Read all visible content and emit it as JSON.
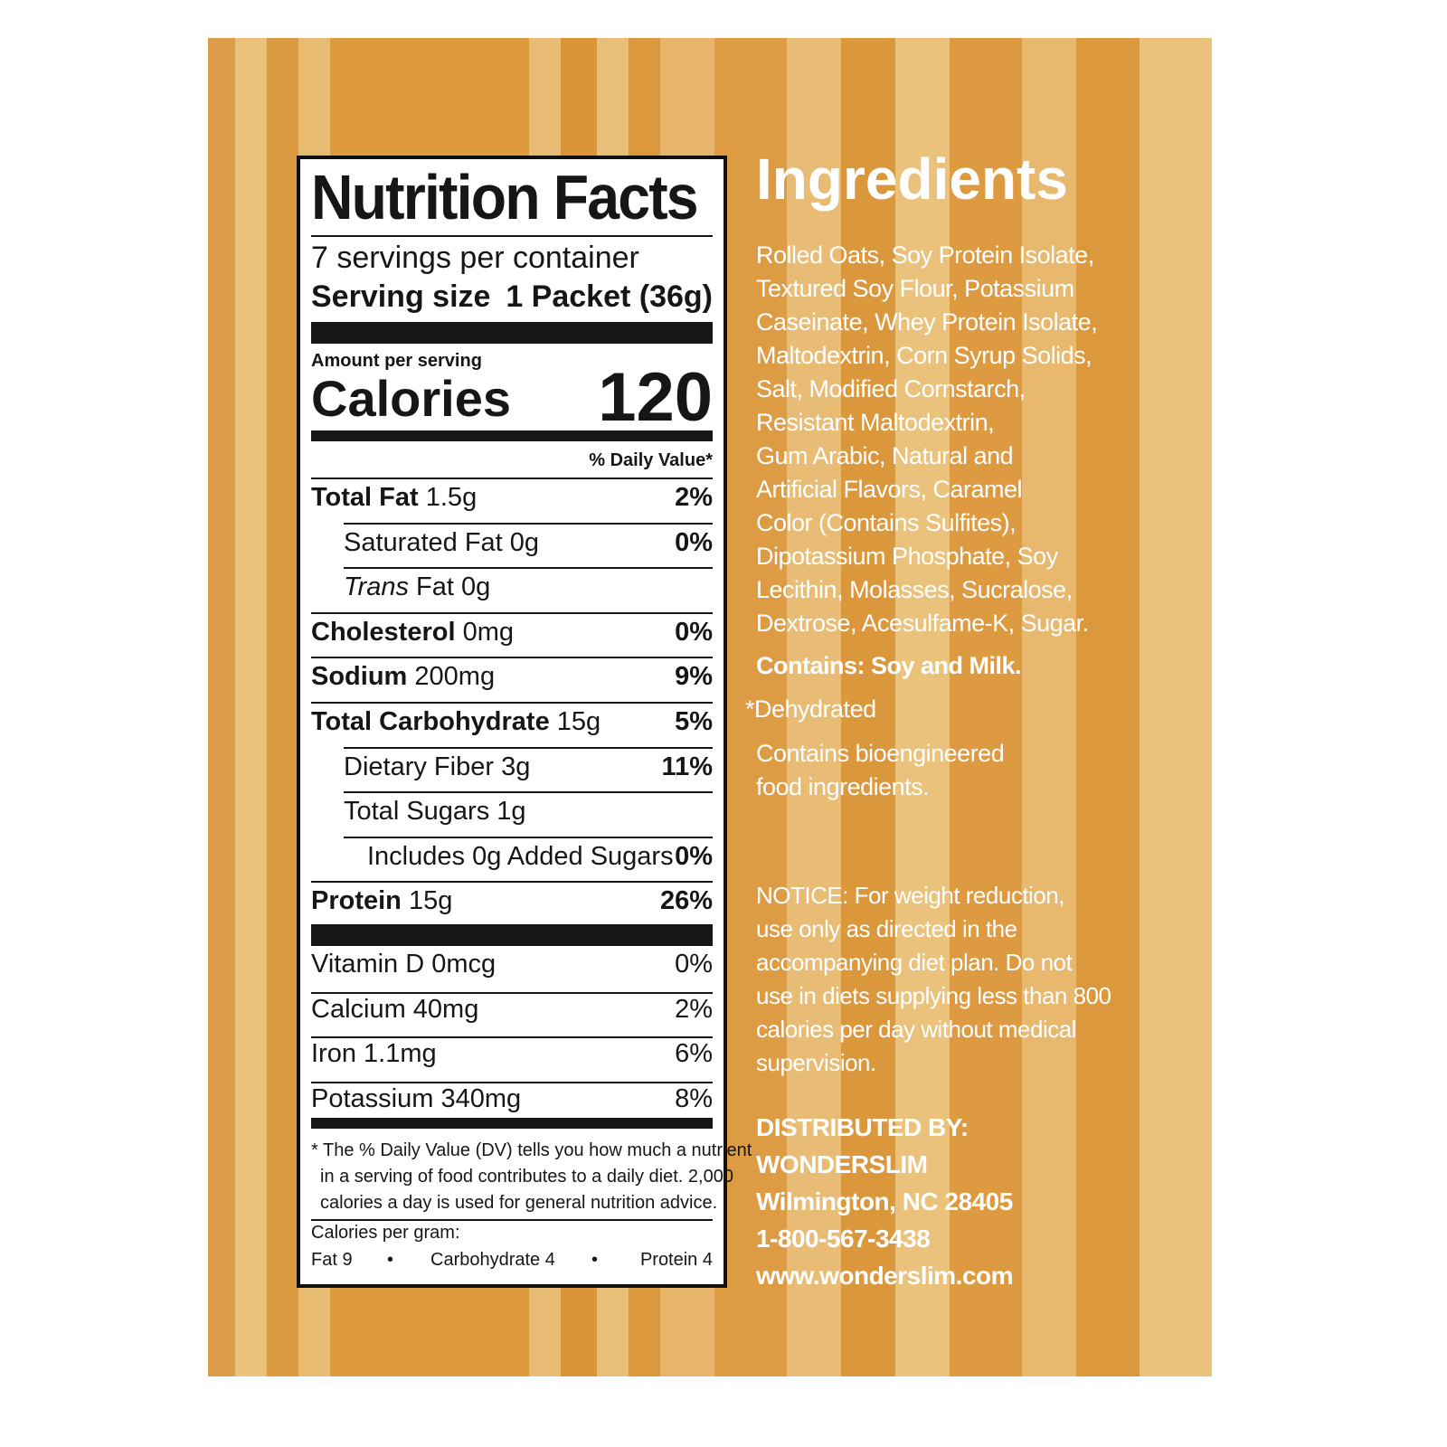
{
  "nutrition": {
    "title": "Nutrition Facts",
    "servings": "7 servings per container",
    "serving_size_label": "Serving size",
    "serving_size_value": "1 Packet (36g)",
    "amount_per_serving": "Amount per serving",
    "calories_label": "Calories",
    "calories_value": "120",
    "dv_header": "% Daily Value*",
    "rows": [
      {
        "name": "Total Fat",
        "amount": "1.5g",
        "dv": "2%"
      },
      {
        "name": "Saturated Fat",
        "amount": "0g",
        "dv": "0%"
      },
      {
        "name": "Trans",
        "amount": "Fat 0g",
        "dv": ""
      },
      {
        "name": "Cholesterol",
        "amount": "0mg",
        "dv": "0%"
      },
      {
        "name": "Sodium",
        "amount": "200mg",
        "dv": "9%"
      },
      {
        "name": "Total Carbohydrate",
        "amount": "15g",
        "dv": "5%"
      },
      {
        "name": "Dietary Fiber",
        "amount": "3g",
        "dv": "11%"
      },
      {
        "name": "Total Sugars",
        "amount": "1g",
        "dv": ""
      },
      {
        "name": "Includes 0g Added Sugars",
        "amount": "",
        "dv": "0%"
      },
      {
        "name": "Protein",
        "amount": "15g",
        "dv": "26%"
      }
    ],
    "vitamins": [
      {
        "name": "Vitamin D 0mcg",
        "dv": "0%"
      },
      {
        "name": "Calcium 40mg",
        "dv": "2%"
      },
      {
        "name": "Iron 1.1mg",
        "dv": "6%"
      },
      {
        "name": "Potassium 340mg",
        "dv": "8%"
      }
    ],
    "footnote": [
      "* The % Daily Value (DV) tells you how much a nutrient",
      "in a serving of food contributes to a daily diet. 2,000",
      "calories a day is used for general nutrition advice."
    ],
    "cal_per_gram": "Calories per gram:",
    "fat_gram": "Fat 9",
    "carb_gram": "Carbohydrate 4",
    "protein_gram": "Protein 4"
  },
  "ingredients": {
    "title": "Ingredients",
    "lines": [
      "Rolled Oats, Soy Protein Isolate,",
      "Textured Soy Flour, Potassium",
      "Caseinate, Whey Protein Isolate,",
      "Maltodextrin, Corn Syrup Solids,",
      "Salt, Modified Cornstarch,",
      "Resistant Maltodextrin,",
      "Gum Arabic, Natural and",
      "Artificial Flavors, Caramel",
      "Color (Contains Sulfites),",
      "Dipotassium Phosphate, Soy",
      "Lecithin, Molasses, Sucralose,",
      "Dextrose, Acesulfame-K, Sugar."
    ],
    "contains": "Contains: Soy and Milk.",
    "dehydrated": "*Dehydrated",
    "bioengineered": [
      "Contains bioengineered",
      "food ingredients."
    ],
    "notice": [
      "NOTICE: For weight reduction,",
      "use only as directed in the",
      "accompanying diet plan. Do not",
      "use in diets supplying less than 800",
      "calories per day without medical",
      "supervision."
    ],
    "distributor": [
      "DISTRIBUTED BY:",
      "WONDERSLIM",
      "Wilmington, NC 28405",
      "1-800-567-3438",
      "www.wonderslim.com"
    ]
  },
  "colors": {
    "stripe_light": "#eac27c",
    "stripe_dark": "#dc9a40",
    "text": "#ffffff"
  }
}
